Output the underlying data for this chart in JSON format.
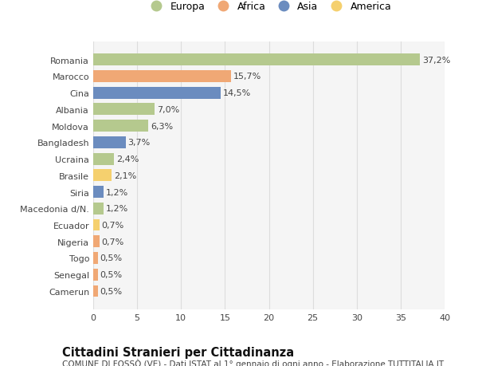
{
  "countries": [
    "Romania",
    "Marocco",
    "Cina",
    "Albania",
    "Moldova",
    "Bangladesh",
    "Ucraina",
    "Brasile",
    "Siria",
    "Macedonia d/N.",
    "Ecuador",
    "Nigeria",
    "Togo",
    "Senegal",
    "Camerun"
  ],
  "values": [
    37.2,
    15.7,
    14.5,
    7.0,
    6.3,
    3.7,
    2.4,
    2.1,
    1.2,
    1.2,
    0.7,
    0.7,
    0.5,
    0.5,
    0.5
  ],
  "labels": [
    "37,2%",
    "15,7%",
    "14,5%",
    "7,0%",
    "6,3%",
    "3,7%",
    "2,4%",
    "2,1%",
    "1,2%",
    "1,2%",
    "0,7%",
    "0,7%",
    "0,5%",
    "0,5%",
    "0,5%"
  ],
  "continents": [
    "Europa",
    "Africa",
    "Asia",
    "Europa",
    "Europa",
    "Asia",
    "Europa",
    "America",
    "Asia",
    "Europa",
    "America",
    "Africa",
    "Africa",
    "Africa",
    "Africa"
  ],
  "continent_colors": {
    "Europa": "#b5c98e",
    "Africa": "#f0a875",
    "Asia": "#6b8cbf",
    "America": "#f5d06e"
  },
  "legend_order": [
    "Europa",
    "Africa",
    "Asia",
    "America"
  ],
  "title": "Cittadini Stranieri per Cittadinanza",
  "subtitle": "COMUNE DI FOSSÒ (VE) - Dati ISTAT al 1° gennaio di ogni anno - Elaborazione TUTTITALIA.IT",
  "xlim": [
    0,
    40
  ],
  "xticks": [
    0,
    5,
    10,
    15,
    20,
    25,
    30,
    35,
    40
  ],
  "bg_color": "#ffffff",
  "plot_bg_color": "#f5f5f5",
  "grid_color": "#dddddd",
  "bar_height": 0.72,
  "label_fontsize": 8.0,
  "title_fontsize": 10.5,
  "subtitle_fontsize": 7.5,
  "tick_fontsize": 8.0,
  "legend_fontsize": 9.0
}
